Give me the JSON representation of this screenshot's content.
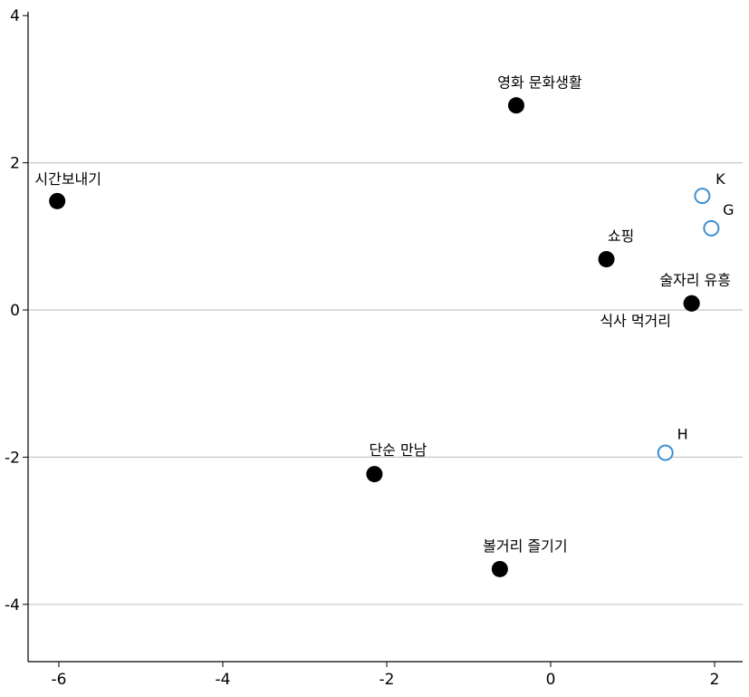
{
  "chart_data": {
    "type": "scatter",
    "title": "",
    "xlabel": "",
    "ylabel": "",
    "xlim": [
      -6.4,
      2.3
    ],
    "ylim": [
      -4.8,
      4.0
    ],
    "x_ticks": [
      -6,
      -4,
      -2,
      0,
      2
    ],
    "y_ticks": [
      -4,
      -2,
      0,
      2,
      4
    ],
    "grid": "horizontal",
    "legend": "none",
    "series": [
      {
        "marker": "filled-circle",
        "color": "#000000",
        "points": [
          {
            "label": "영화 문화생활",
            "x": -0.42,
            "y": 2.78
          },
          {
            "label": "시간보내기",
            "x": -6.02,
            "y": 1.48
          },
          {
            "label": "쇼핑",
            "x": 0.68,
            "y": 0.69
          },
          {
            "label": "술자리 유흥",
            "x": 1.72,
            "y": 0.09
          },
          {
            "label": "식사 먹거리",
            "x": 1.72,
            "y": 0.09
          },
          {
            "label": "단순 만남",
            "x": -2.15,
            "y": -2.23
          },
          {
            "label": "볼거리 즐기기",
            "x": -0.62,
            "y": -3.52
          }
        ]
      },
      {
        "marker": "open-circle",
        "color": "#3d8fd1",
        "points": [
          {
            "label": "K",
            "x": 1.85,
            "y": 1.55
          },
          {
            "label": "G",
            "x": 1.96,
            "y": 1.11
          },
          {
            "label": "H",
            "x": 1.4,
            "y": -1.94
          }
        ]
      }
    ]
  }
}
